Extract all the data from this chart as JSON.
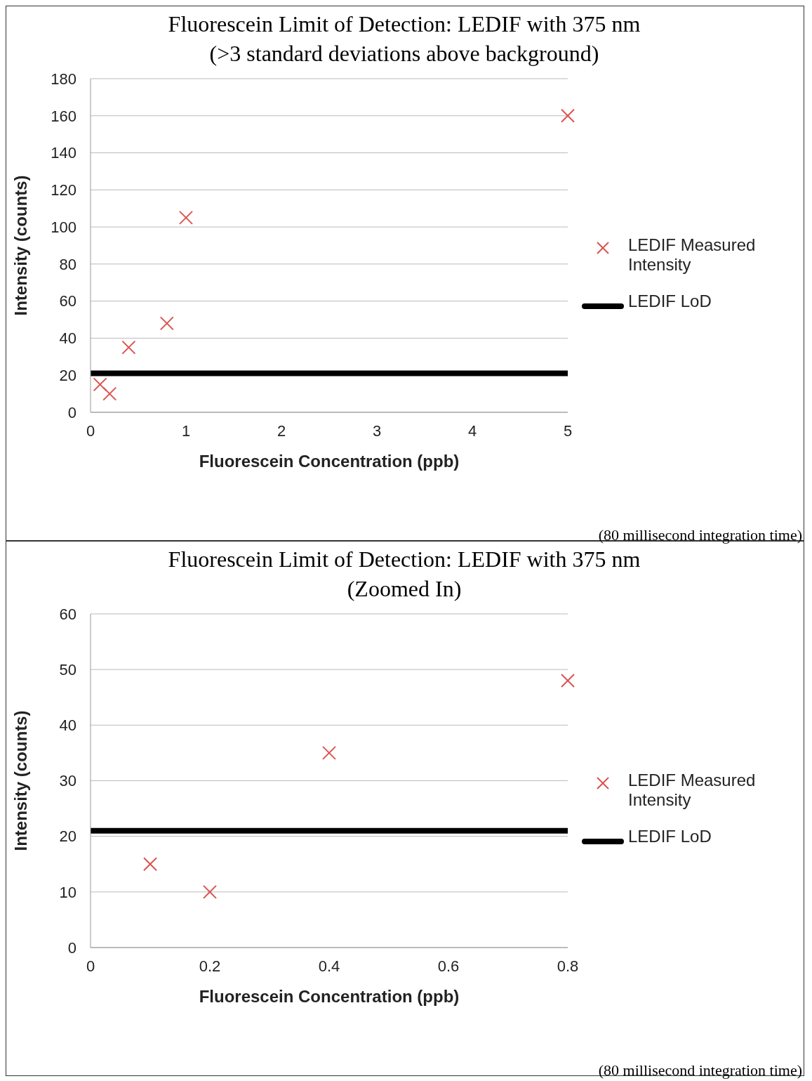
{
  "chart_data": [
    {
      "type": "scatter",
      "title": "Fluorescein Limit of Detection: LEDIF with 375 nm",
      "subtitle": "(>3 standard deviations above background)",
      "xlabel": "Fluorescein Concentration (ppb)",
      "ylabel": "Intensity (counts)",
      "xlim": [
        0,
        5
      ],
      "xticks": [
        0,
        1,
        2,
        3,
        4,
        5
      ],
      "ylim": [
        0,
        180
      ],
      "yticks": [
        0,
        20,
        40,
        60,
        80,
        100,
        120,
        140,
        160,
        180
      ],
      "grid": "y",
      "legend": "right",
      "annotations": [
        "(80 millisecond integration time)"
      ],
      "series": [
        {
          "name": "LEDIF Measured Intensity",
          "marker": "cross",
          "color": "#d9534f",
          "x": [
            0.1,
            0.2,
            0.4,
            0.8,
            1,
            5
          ],
          "values": [
            15,
            10,
            35,
            48,
            105,
            160
          ]
        },
        {
          "name": "LEDIF LoD",
          "type": "line",
          "color": "#000000",
          "x": [
            0,
            5
          ],
          "values": [
            21,
            21
          ]
        }
      ]
    },
    {
      "type": "scatter",
      "title": "Fluorescein Limit of Detection: LEDIF with 375 nm",
      "subtitle": "(Zoomed In)",
      "xlabel": "Fluorescein Concentration (ppb)",
      "ylabel": "Intensity (counts)",
      "xlim": [
        0,
        0.8
      ],
      "xticks": [
        0,
        0.2,
        0.4,
        0.6,
        0.8
      ],
      "ylim": [
        0,
        60
      ],
      "yticks": [
        0,
        10,
        20,
        30,
        40,
        50,
        60
      ],
      "grid": "y",
      "legend": "right",
      "annotations": [
        "(80 millisecond integration time)"
      ],
      "series": [
        {
          "name": "LEDIF Measured Intensity",
          "marker": "cross",
          "color": "#d9534f",
          "x": [
            0.1,
            0.2,
            0.4,
            0.8
          ],
          "values": [
            15,
            10,
            35,
            48
          ]
        },
        {
          "name": "LEDIF LoD",
          "type": "line",
          "color": "#000000",
          "x": [
            0,
            0.8
          ],
          "values": [
            21,
            21
          ]
        }
      ]
    }
  ]
}
